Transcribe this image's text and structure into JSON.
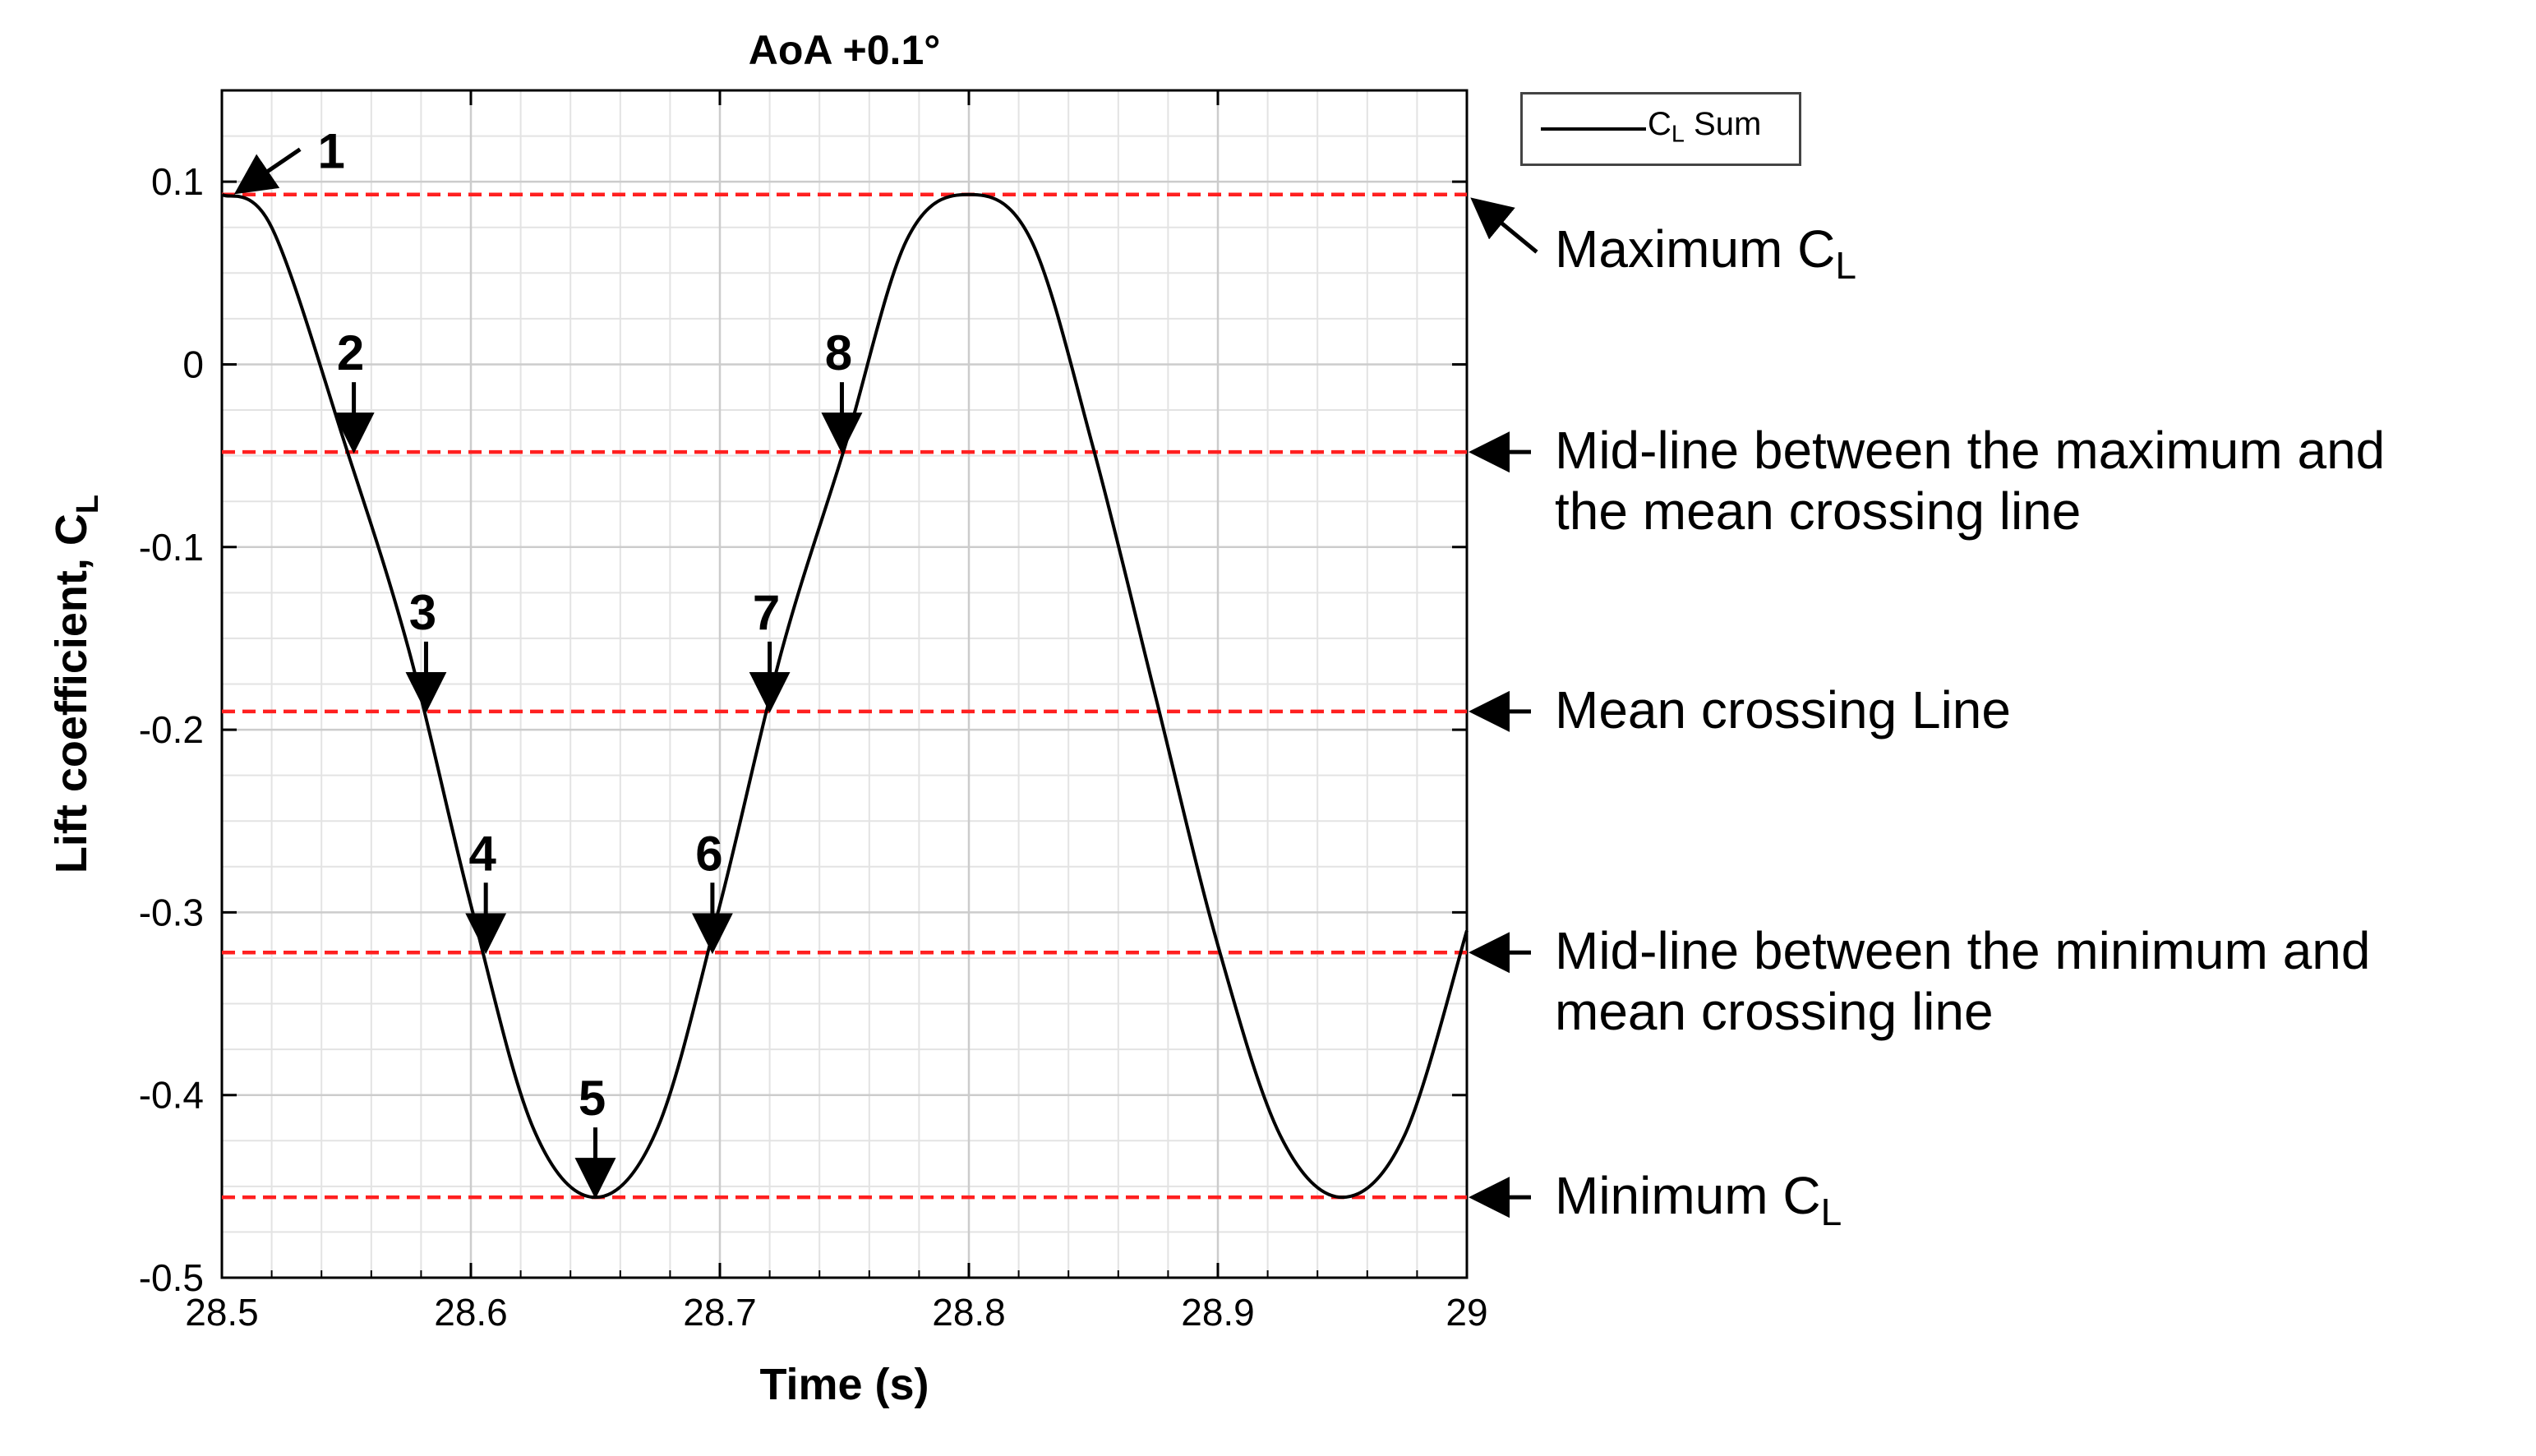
{
  "chart_data": {
    "type": "line",
    "title": "AoA +0.1°",
    "xlabel": "Time (s)",
    "ylabel_main": "Lift coefficient, C",
    "ylabel_sub": "L",
    "xlim": [
      28.5,
      29
    ],
    "ylim": [
      -0.5,
      0.15
    ],
    "x_ticks": [
      28.5,
      28.6,
      28.7,
      28.8,
      28.9,
      29
    ],
    "x_tick_labels": [
      "28.5",
      "28.6",
      "28.7",
      "28.8",
      "28.9",
      "29"
    ],
    "y_ticks": [
      0.1,
      0,
      -0.1,
      -0.2,
      -0.3,
      -0.4,
      -0.5
    ],
    "y_tick_labels": [
      "0.1",
      "0",
      "-0.1",
      "-0.2",
      "-0.3",
      "-0.4",
      "-0.5"
    ],
    "grid": true,
    "series": [
      {
        "name": "C_L Sum",
        "legend_main": "C",
        "legend_sub": "L",
        "legend_rest": " Sum",
        "color": "#000000",
        "x": [
          28.5,
          28.52,
          28.55,
          28.575,
          28.6,
          28.625,
          28.65,
          28.675,
          28.7,
          28.725,
          28.75,
          28.775,
          28.8,
          28.825,
          28.85,
          28.875,
          28.9,
          28.925,
          28.95,
          28.975,
          29.0
        ],
        "y": [
          0.093,
          0.075,
          -0.046,
          -0.156,
          -0.296,
          -0.418,
          -0.456,
          -0.418,
          -0.296,
          -0.156,
          -0.046,
          0.068,
          0.093,
          0.068,
          -0.046,
          -0.182,
          -0.318,
          -0.422,
          -0.456,
          -0.422,
          -0.31
        ]
      }
    ],
    "reference_lines": [
      {
        "name": "max",
        "y": 0.093,
        "color": "#ff2020",
        "label": "Maximum C",
        "label_sub": "L"
      },
      {
        "name": "mid-upper",
        "y": -0.048,
        "color": "#ff2020",
        "label": "Mid-line between the maximum and",
        "label2": "the mean crossing line"
      },
      {
        "name": "mean",
        "y": -0.19,
        "color": "#ff2020",
        "label": "Mean crossing Line"
      },
      {
        "name": "mid-lower",
        "y": -0.322,
        "color": "#ff2020",
        "label": "Mid-line between the minimum and",
        "label2": "mean crossing line"
      },
      {
        "name": "min",
        "y": -0.456,
        "color": "#ff2020",
        "label": "Minimum C",
        "label_sub": "L"
      }
    ],
    "annotations": [
      {
        "label": "1",
        "x": 28.505,
        "y": 0.093,
        "dir": "diag"
      },
      {
        "label": "2",
        "x": 28.553,
        "y": -0.048,
        "dir": "down"
      },
      {
        "label": "3",
        "x": 28.582,
        "y": -0.19,
        "dir": "down"
      },
      {
        "label": "4",
        "x": 28.606,
        "y": -0.322,
        "dir": "down"
      },
      {
        "label": "5",
        "x": 28.65,
        "y": -0.456,
        "dir": "down"
      },
      {
        "label": "6",
        "x": 28.697,
        "y": -0.322,
        "dir": "down"
      },
      {
        "label": "7",
        "x": 28.72,
        "y": -0.19,
        "dir": "down"
      },
      {
        "label": "8",
        "x": 28.749,
        "y": -0.048,
        "dir": "down"
      }
    ]
  }
}
